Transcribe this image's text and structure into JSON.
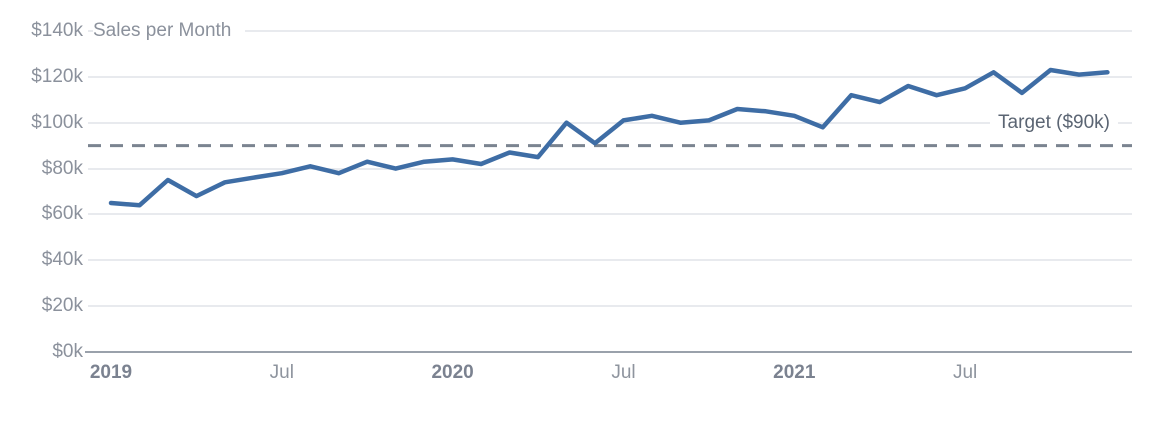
{
  "chart_data": {
    "type": "line",
    "title": "Sales per Month",
    "x": [
      "Jan 2019",
      "Feb 2019",
      "Mar 2019",
      "Apr 2019",
      "May 2019",
      "Jun 2019",
      "Jul 2019",
      "Aug 2019",
      "Sep 2019",
      "Oct 2019",
      "Nov 2019",
      "Dec 2019",
      "Jan 2020",
      "Feb 2020",
      "Mar 2020",
      "Apr 2020",
      "May 2020",
      "Jun 2020",
      "Jul 2020",
      "Aug 2020",
      "Sep 2020",
      "Oct 2020",
      "Nov 2020",
      "Dec 2020",
      "Jan 2021",
      "Feb 2021",
      "Mar 2021",
      "Apr 2021",
      "May 2021",
      "Jun 2021",
      "Jul 2021",
      "Aug 2021",
      "Sep 2021",
      "Oct 2021",
      "Nov 2021",
      "Dec 2021"
    ],
    "series": [
      {
        "name": "Sales per Month",
        "values": [
          65,
          64,
          75,
          68,
          74,
          76,
          78,
          81,
          78,
          83,
          80,
          83,
          84,
          82,
          87,
          85,
          100,
          91,
          101,
          103,
          100,
          101,
          106,
          105,
          103,
          98,
          112,
          109,
          116,
          112,
          115,
          122,
          113,
          123,
          121,
          122
        ]
      }
    ],
    "target_line": {
      "label": "Target ($90k)",
      "value": 90
    },
    "ylabel": "",
    "xlabel": "",
    "ylim": [
      0,
      140
    ],
    "grid": true,
    "legend_position": "none",
    "y_ticks": [
      {
        "label": "$140k",
        "value": 140
      },
      {
        "label": "$120k",
        "value": 120
      },
      {
        "label": "$100k",
        "value": 100
      },
      {
        "label": "$80k",
        "value": 80
      },
      {
        "label": "$60k",
        "value": 60
      },
      {
        "label": "$40k",
        "value": 40
      },
      {
        "label": "$20k",
        "value": 20
      },
      {
        "label": "$0k",
        "value": 0
      }
    ],
    "x_ticks": [
      {
        "label": "2019",
        "month_index": 0,
        "bold": true
      },
      {
        "label": "Jul",
        "month_index": 6,
        "bold": false
      },
      {
        "label": "2020",
        "month_index": 12,
        "bold": true
      },
      {
        "label": "Jul",
        "month_index": 18,
        "bold": false
      },
      {
        "label": "2021",
        "month_index": 24,
        "bold": true
      },
      {
        "label": "Jul",
        "month_index": 30,
        "bold": false
      }
    ],
    "colors": {
      "line": "#3E6DA5",
      "target_dash": "#7B8490",
      "grid": "#E8EAEE",
      "axis": "#9AA1AB",
      "tick_label": "#8B919C",
      "year_label": "#7B8290",
      "target_label": "#5B6573",
      "title": "#8B919C"
    }
  }
}
